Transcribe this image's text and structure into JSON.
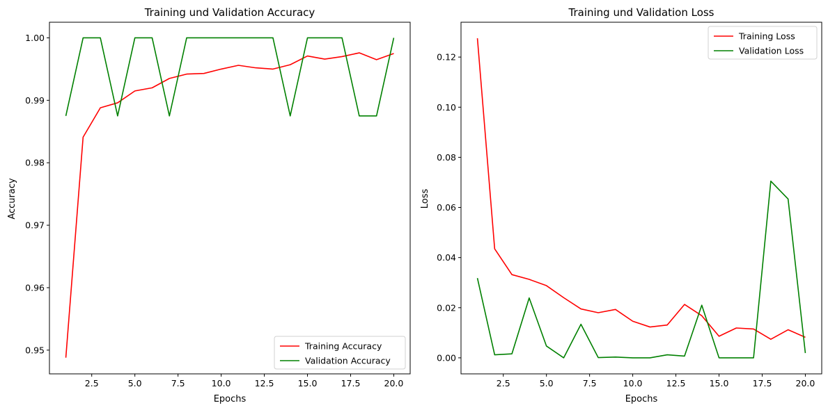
{
  "chart_data": [
    {
      "type": "line",
      "title": "Training und Validation Accuracy",
      "xlabel": "Epochs",
      "ylabel": "Accuracy",
      "x": [
        1,
        2,
        3,
        4,
        5,
        6,
        7,
        8,
        9,
        10,
        11,
        12,
        13,
        14,
        15,
        16,
        17,
        18,
        19,
        20
      ],
      "xlim": [
        0.05,
        20.95
      ],
      "ylim": [
        0.9462,
        1.0025
      ],
      "xticks": [
        2.5,
        5.0,
        7.5,
        10.0,
        12.5,
        15.0,
        17.5,
        20.0
      ],
      "xtick_labels": [
        "2.5",
        "5.0",
        "7.5",
        "10.0",
        "12.5",
        "15.0",
        "17.5",
        "20.0"
      ],
      "yticks": [
        0.95,
        0.96,
        0.97,
        0.98,
        0.99,
        1.0
      ],
      "ytick_labels": [
        "0.95",
        "0.96",
        "0.97",
        "0.98",
        "0.99",
        "1.00"
      ],
      "grid": false,
      "legend_position": "lower-right",
      "series": [
        {
          "name": "Training Accuracy",
          "color": "#ff0000",
          "values": [
            0.9488,
            0.9841,
            0.9888,
            0.9896,
            0.9915,
            0.992,
            0.9935,
            0.9942,
            0.9943,
            0.995,
            0.9956,
            0.9952,
            0.995,
            0.9957,
            0.9971,
            0.9966,
            0.997,
            0.9976,
            0.9965,
            0.9975
          ]
        },
        {
          "name": "Validation Accuracy",
          "color": "#008000",
          "values": [
            0.9875,
            1.0,
            1.0,
            0.9875,
            1.0,
            1.0,
            0.9875,
            1.0,
            1.0,
            1.0,
            1.0,
            1.0,
            1.0,
            0.9875,
            1.0,
            1.0,
            1.0,
            0.9875,
            0.9875,
            1.0
          ]
        }
      ]
    },
    {
      "type": "line",
      "title": "Training und Validation Loss",
      "xlabel": "Epochs",
      "ylabel": "Loss",
      "x": [
        1,
        2,
        3,
        4,
        5,
        6,
        7,
        8,
        9,
        10,
        11,
        12,
        13,
        14,
        15,
        16,
        17,
        18,
        19,
        20
      ],
      "xlim": [
        0.05,
        20.95
      ],
      "ylim": [
        -0.0064,
        0.1339
      ],
      "xticks": [
        2.5,
        5.0,
        7.5,
        10.0,
        12.5,
        15.0,
        17.5,
        20.0
      ],
      "xtick_labels": [
        "2.5",
        "5.0",
        "7.5",
        "10.0",
        "12.5",
        "15.0",
        "17.5",
        "20.0"
      ],
      "yticks": [
        0.0,
        0.02,
        0.04,
        0.06,
        0.08,
        0.1,
        0.12
      ],
      "ytick_labels": [
        "0.00",
        "0.02",
        "0.04",
        "0.06",
        "0.08",
        "0.10",
        "0.12"
      ],
      "grid": false,
      "legend_position": "upper-right",
      "series": [
        {
          "name": "Training Loss",
          "color": "#ff0000",
          "values": [
            0.1275,
            0.0435,
            0.0332,
            0.0313,
            0.0288,
            0.024,
            0.0195,
            0.018,
            0.0193,
            0.0146,
            0.0123,
            0.0131,
            0.0213,
            0.0168,
            0.0086,
            0.0119,
            0.0115,
            0.0074,
            0.0112,
            0.0082
          ]
        },
        {
          "name": "Validation Loss",
          "color": "#008000",
          "values": [
            0.0318,
            0.0012,
            0.0016,
            0.0239,
            0.0047,
            0.0,
            0.0134,
            0.0001,
            0.0003,
            0.0,
            0.0,
            0.0012,
            0.0007,
            0.021,
            0.0,
            0.0,
            0.0,
            0.0705,
            0.0634,
            0.0019
          ]
        }
      ]
    }
  ]
}
